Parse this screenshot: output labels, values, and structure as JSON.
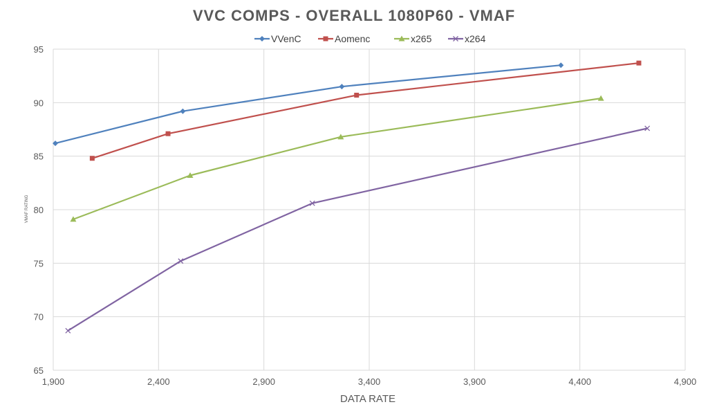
{
  "chart_data": {
    "type": "line",
    "title": "VVC COMPS - OVERALL 1080P60 - VMAF",
    "xlabel": "DATA RATE",
    "ylabel": "VMAF RATING",
    "xlim": [
      1900,
      4900
    ],
    "ylim": [
      65,
      95
    ],
    "xticks": [
      1900,
      2400,
      2900,
      3400,
      3900,
      4400,
      4900
    ],
    "xtick_labels": [
      "1,900",
      "2,400",
      "2,900",
      "3,400",
      "3,900",
      "4,400",
      "4,900"
    ],
    "yticks": [
      65,
      70,
      75,
      80,
      85,
      90,
      95
    ],
    "ytick_labels": [
      "65",
      "70",
      "75",
      "80",
      "85",
      "90",
      "95"
    ],
    "grid": true,
    "legend_position": "top",
    "series": [
      {
        "name": "VVenC",
        "color": "#4f81bd",
        "marker": "diamond",
        "x": [
          1910,
          2515,
          3270,
          4310
        ],
        "y": [
          86.2,
          89.2,
          91.5,
          93.5
        ]
      },
      {
        "name": "Aomenc",
        "color": "#c0504d",
        "marker": "square",
        "x": [
          2085,
          2445,
          3340,
          4680
        ],
        "y": [
          84.8,
          87.1,
          90.7,
          93.7
        ]
      },
      {
        "name": "x265",
        "color": "#9bbb59",
        "marker": "triangle",
        "x": [
          1995,
          2550,
          3265,
          4500
        ],
        "y": [
          79.1,
          83.2,
          86.8,
          90.4
        ]
      },
      {
        "name": "x264",
        "color": "#8064a2",
        "marker": "x",
        "x": [
          1970,
          2505,
          3130,
          4720
        ],
        "y": [
          68.7,
          75.2,
          80.6,
          87.6
        ]
      }
    ]
  }
}
